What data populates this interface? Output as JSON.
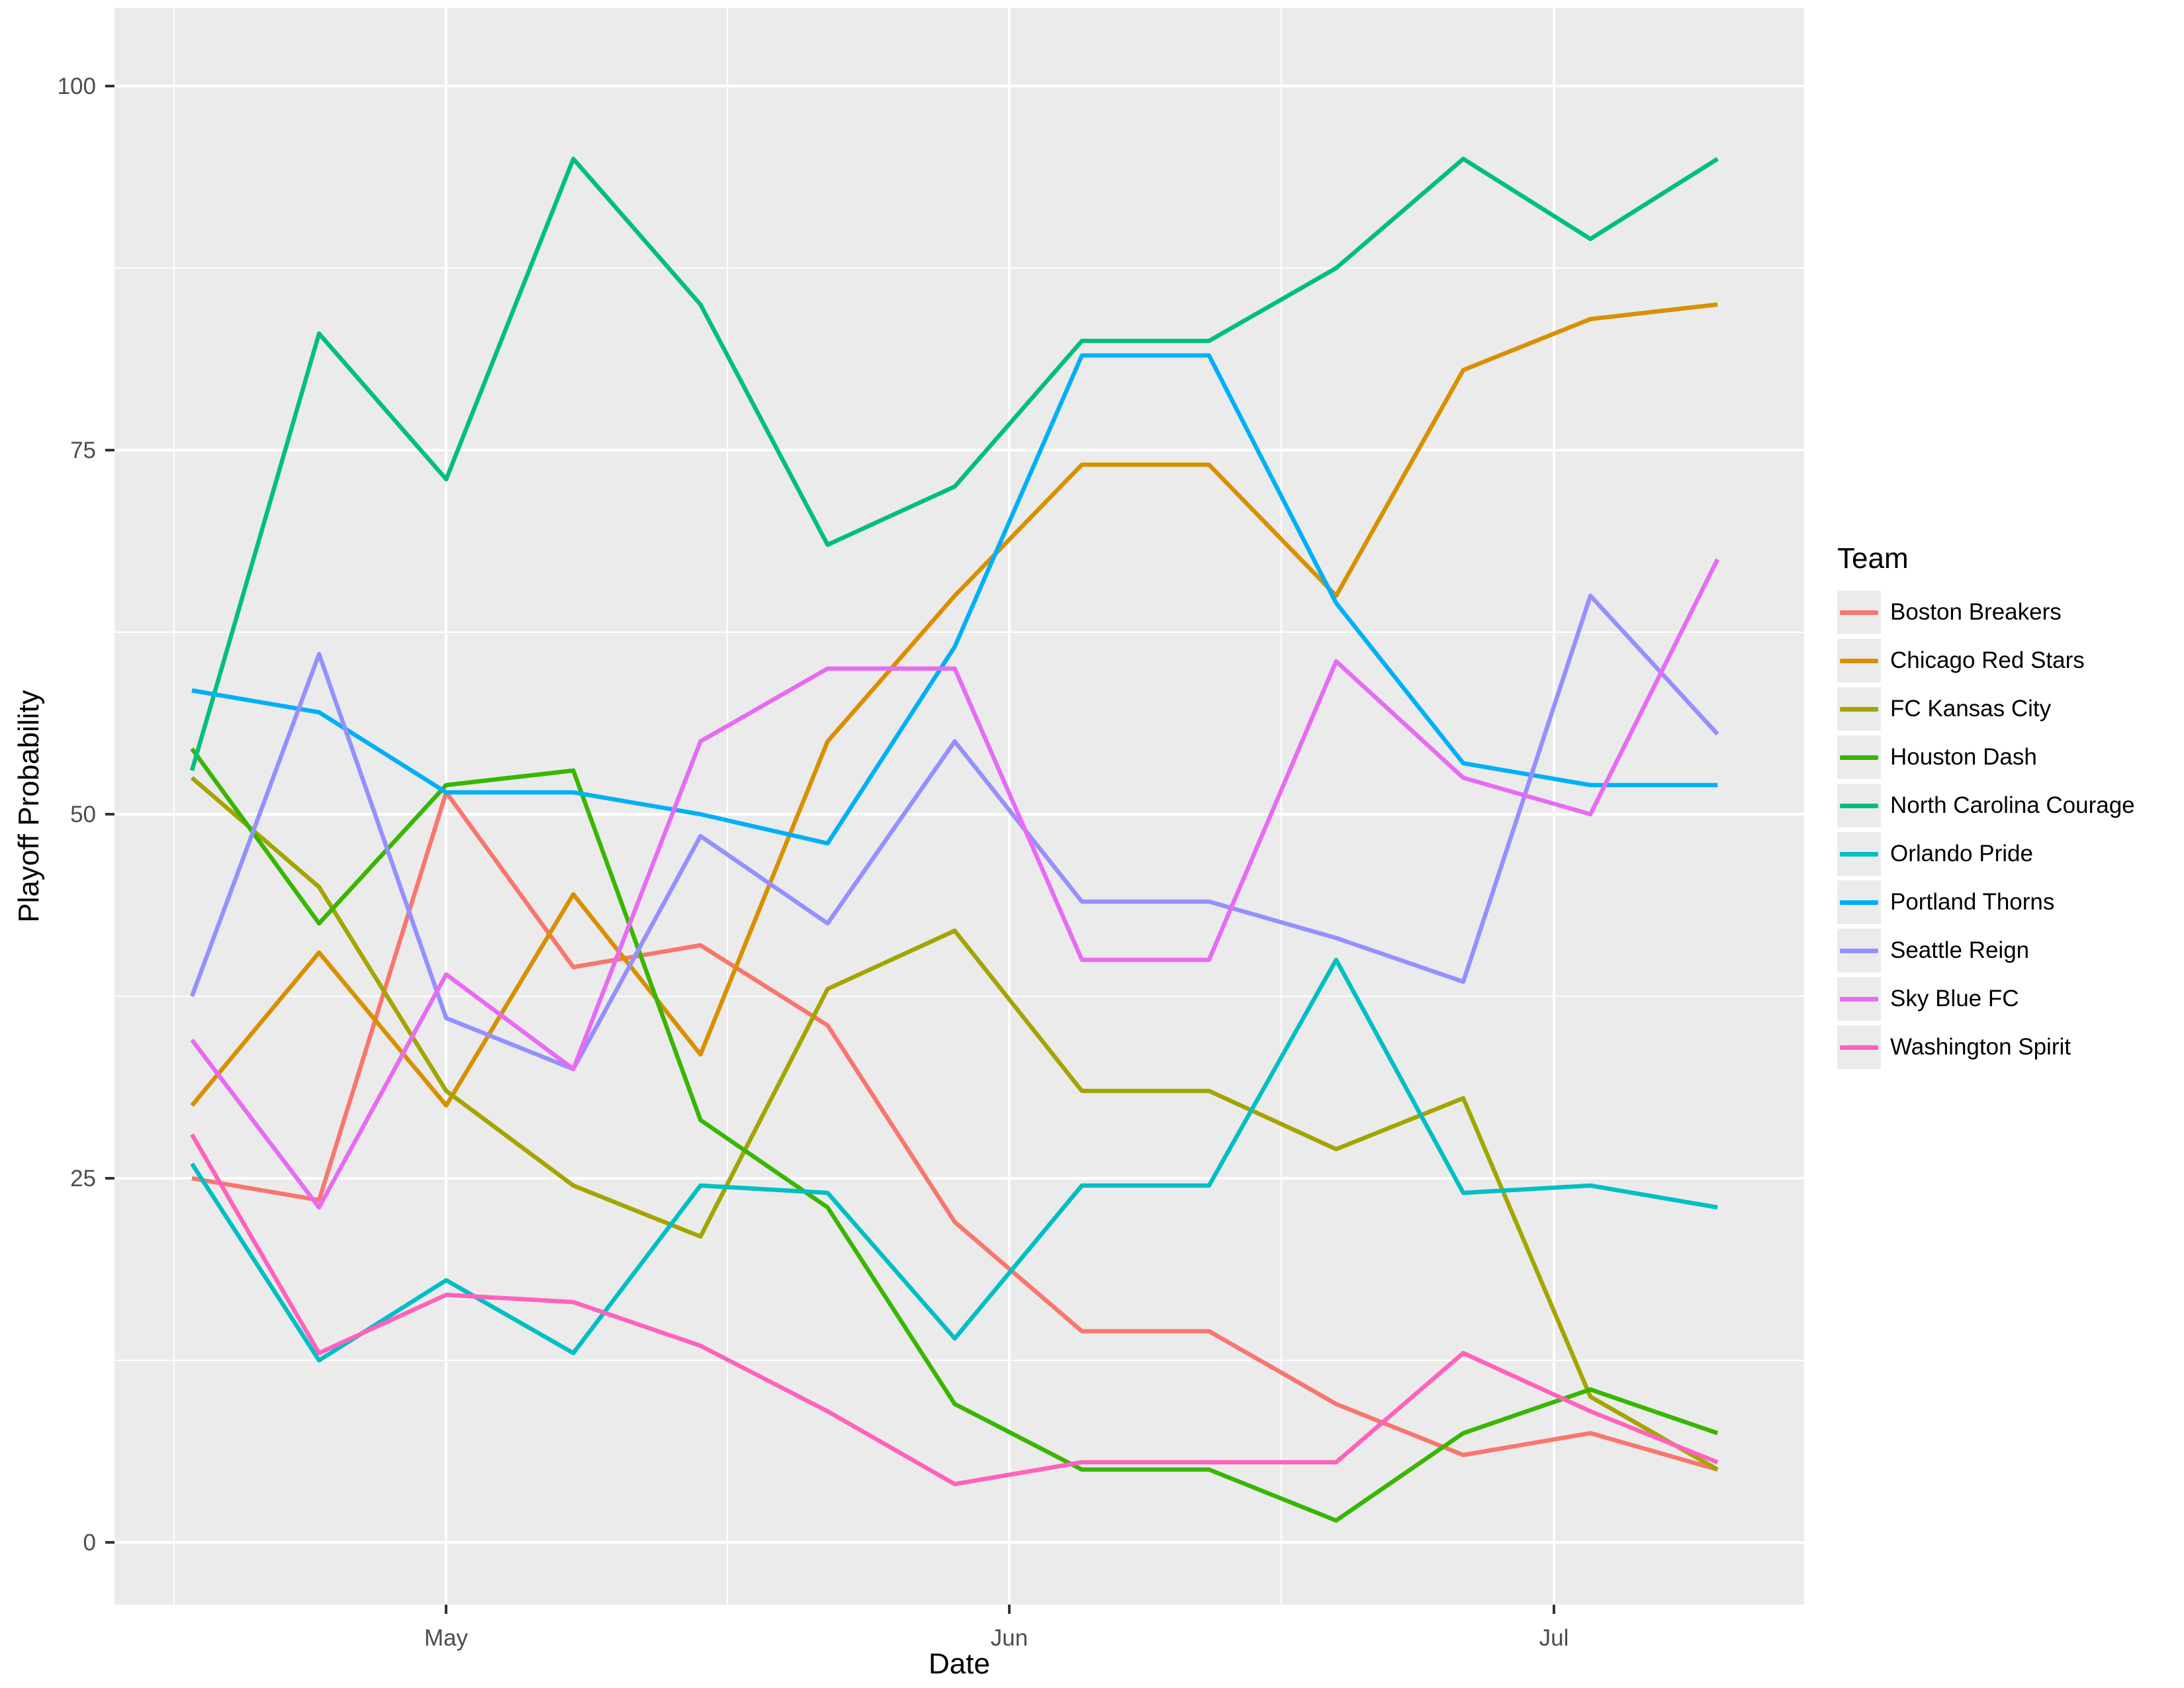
{
  "chart_data": {
    "type": "line",
    "title": "",
    "xlabel": "Date",
    "ylabel": "Playoff Probability",
    "legend_title": "Team",
    "legend_position": "right",
    "grid": "white major and minor gridlines on gray panel",
    "panel_color": "#EBEBEB",
    "tick_label_color": "#4D4D4D",
    "ylim": [
      0,
      100
    ],
    "y_axis_ticks": [
      0,
      25,
      50,
      75,
      100
    ],
    "x_axis_tick_labels": [
      "May",
      "Jun",
      "Jul"
    ],
    "x": [
      "Apr 17",
      "Apr 24",
      "May 1",
      "May 8",
      "May 15",
      "May 22",
      "May 29",
      "Jun 5",
      "Jun 12",
      "Jun 19",
      "Jun 26",
      "Jul 3",
      "Jul 10"
    ],
    "series": [
      {
        "name": "Boston Breakers",
        "color": "#F8766D",
        "values": [
          25,
          23.5,
          51.5,
          39.5,
          41,
          35.5,
          22,
          14.5,
          14.5,
          9.5,
          6,
          7.5,
          5
        ]
      },
      {
        "name": "Chicago Red Stars",
        "color": "#D89000",
        "values": [
          30,
          40.5,
          30,
          44.5,
          33.5,
          55,
          65,
          74,
          74,
          65,
          80.5,
          84,
          85
        ]
      },
      {
        "name": "FC Kansas City",
        "color": "#A3A500",
        "values": [
          52.5,
          45,
          31,
          24.5,
          21,
          38,
          42,
          31,
          31,
          27,
          30.5,
          10,
          5
        ]
      },
      {
        "name": "Houston Dash",
        "color": "#39B600",
        "values": [
          54.5,
          42.5,
          52,
          53,
          29,
          23,
          9.5,
          5,
          5,
          1.5,
          7.5,
          10.5,
          7.5
        ]
      },
      {
        "name": "North Carolina Courage",
        "color": "#00BF7D",
        "values": [
          53,
          83,
          73,
          95,
          85,
          68.5,
          72.5,
          82.5,
          82.5,
          87.5,
          95,
          89.5,
          95
        ]
      },
      {
        "name": "Orlando Pride",
        "color": "#00BFC4",
        "values": [
          26,
          12.5,
          18,
          13,
          24.5,
          24,
          14,
          24.5,
          24.5,
          40,
          24,
          24.5,
          23
        ]
      },
      {
        "name": "Portland Thorns",
        "color": "#00B0F6",
        "values": [
          58.5,
          57,
          51.5,
          51.5,
          50,
          48,
          61.5,
          81.5,
          81.5,
          64.5,
          53.5,
          52,
          52
        ]
      },
      {
        "name": "Seattle Reign",
        "color": "#9590FF",
        "values": [
          37.5,
          61,
          36,
          32.5,
          48.5,
          42.5,
          55,
          44,
          44,
          41.5,
          38.5,
          65,
          55.5
        ]
      },
      {
        "name": "Sky Blue FC",
        "color": "#E76BF3",
        "values": [
          34.5,
          23,
          39,
          32.5,
          55,
          60,
          60,
          40,
          40,
          60.5,
          52.5,
          50,
          67.5
        ]
      },
      {
        "name": "Washington Spirit",
        "color": "#FF62BC",
        "values": [
          28,
          13,
          17,
          16.5,
          13.5,
          9,
          4,
          5.5,
          5.5,
          5.5,
          13,
          9,
          5.5
        ]
      }
    ]
  }
}
